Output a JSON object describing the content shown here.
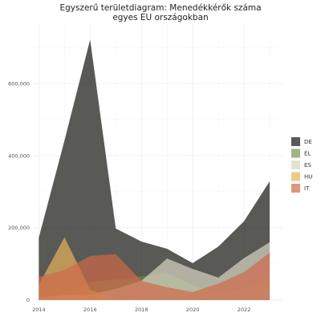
{
  "chart_data": {
    "type": "area",
    "title_lines": [
      "Egyszerű területdiagram: Menedékkérők száma",
      "egyes EU országokban"
    ],
    "xlabel": "",
    "ylabel": "",
    "x": [
      2014,
      2015,
      2016,
      2017,
      2018,
      2019,
      2020,
      2021,
      2022,
      2023
    ],
    "x_ticks": [
      2014,
      2016,
      2018,
      2020,
      2022
    ],
    "x_tick_labels": [
      "2014",
      "2016",
      "2018",
      "2020",
      "2022"
    ],
    "xlim": [
      2013.8,
      2023.5
    ],
    "ylim": [
      -5000,
      765000
    ],
    "y_ticks": [
      0,
      200000,
      400000,
      600000
    ],
    "y_tick_labels": [
      "0",
      "200,000",
      "400,000",
      "600,000"
    ],
    "grid": true,
    "stacked": false,
    "legend_position": "right",
    "series": [
      {
        "name": "DE",
        "color": "#2f302b",
        "opacity": 0.8,
        "values": [
          173000,
          442000,
          722000,
          198000,
          162000,
          142000,
          102000,
          148000,
          218000,
          329000
        ]
      },
      {
        "name": "EL",
        "color": "#6f8d42",
        "opacity": 0.65,
        "values": [
          9000,
          11000,
          49000,
          57000,
          65000,
          75000,
          40000,
          22000,
          30000,
          57000
        ]
      },
      {
        "name": "ES",
        "color": "#d9d6c3",
        "opacity": 0.7,
        "values": [
          5000,
          14000,
          15000,
          31000,
          53000,
          115000,
          86000,
          62000,
          116000,
          160000
        ]
      },
      {
        "name": "HU",
        "color": "#e8b25a",
        "opacity": 0.7,
        "values": [
          42000,
          174000,
          28000,
          3000,
          1000,
          500,
          100,
          50,
          40,
          30
        ]
      },
      {
        "name": "IT",
        "color": "#d06a4a",
        "opacity": 0.7,
        "values": [
          64000,
          83000,
          122000,
          127000,
          53000,
          35000,
          22000,
          45000,
          77000,
          131000
        ]
      }
    ]
  }
}
